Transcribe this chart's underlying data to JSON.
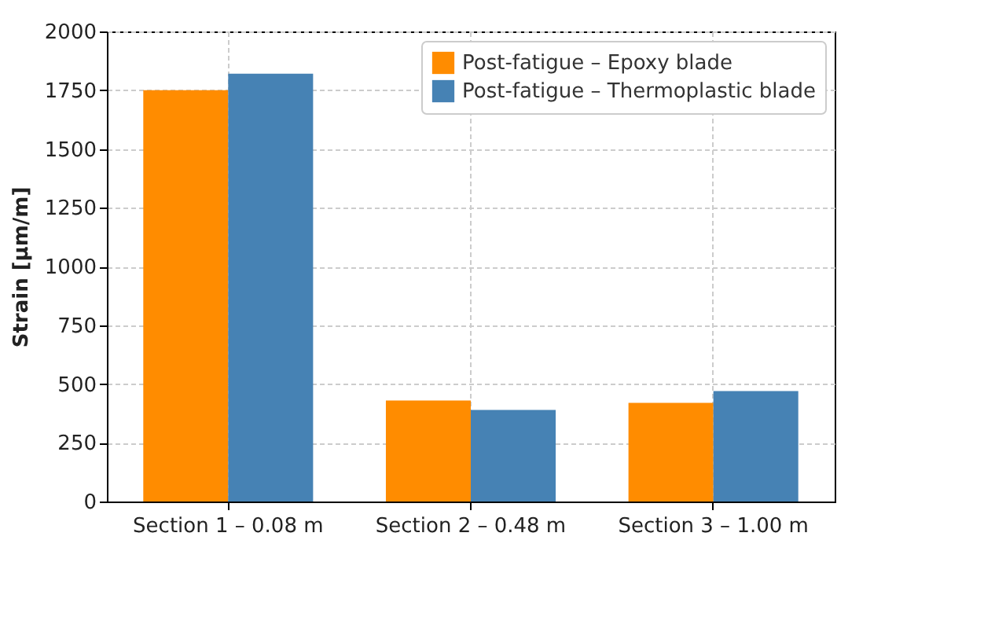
{
  "chart_data": {
    "type": "bar",
    "ylabel": "Strain [µm/m]",
    "categories": [
      "Section 1 – 0.08 m",
      "Section 2 – 0.48 m",
      "Section 3 – 1.00 m"
    ],
    "series": [
      {
        "name": "Post-fatigue – Epoxy blade",
        "color": "#ff8c00",
        "values": [
          1750,
          430,
          420
        ]
      },
      {
        "name": "Post-fatigue – Thermoplastic blade",
        "color": "#4682b4",
        "values": [
          1820,
          390,
          470
        ]
      }
    ],
    "ylim": [
      0,
      2000
    ],
    "yticks": [
      0,
      250,
      500,
      750,
      1000,
      1250,
      1500,
      1750,
      2000
    ],
    "grid": true,
    "legend": "top right"
  }
}
